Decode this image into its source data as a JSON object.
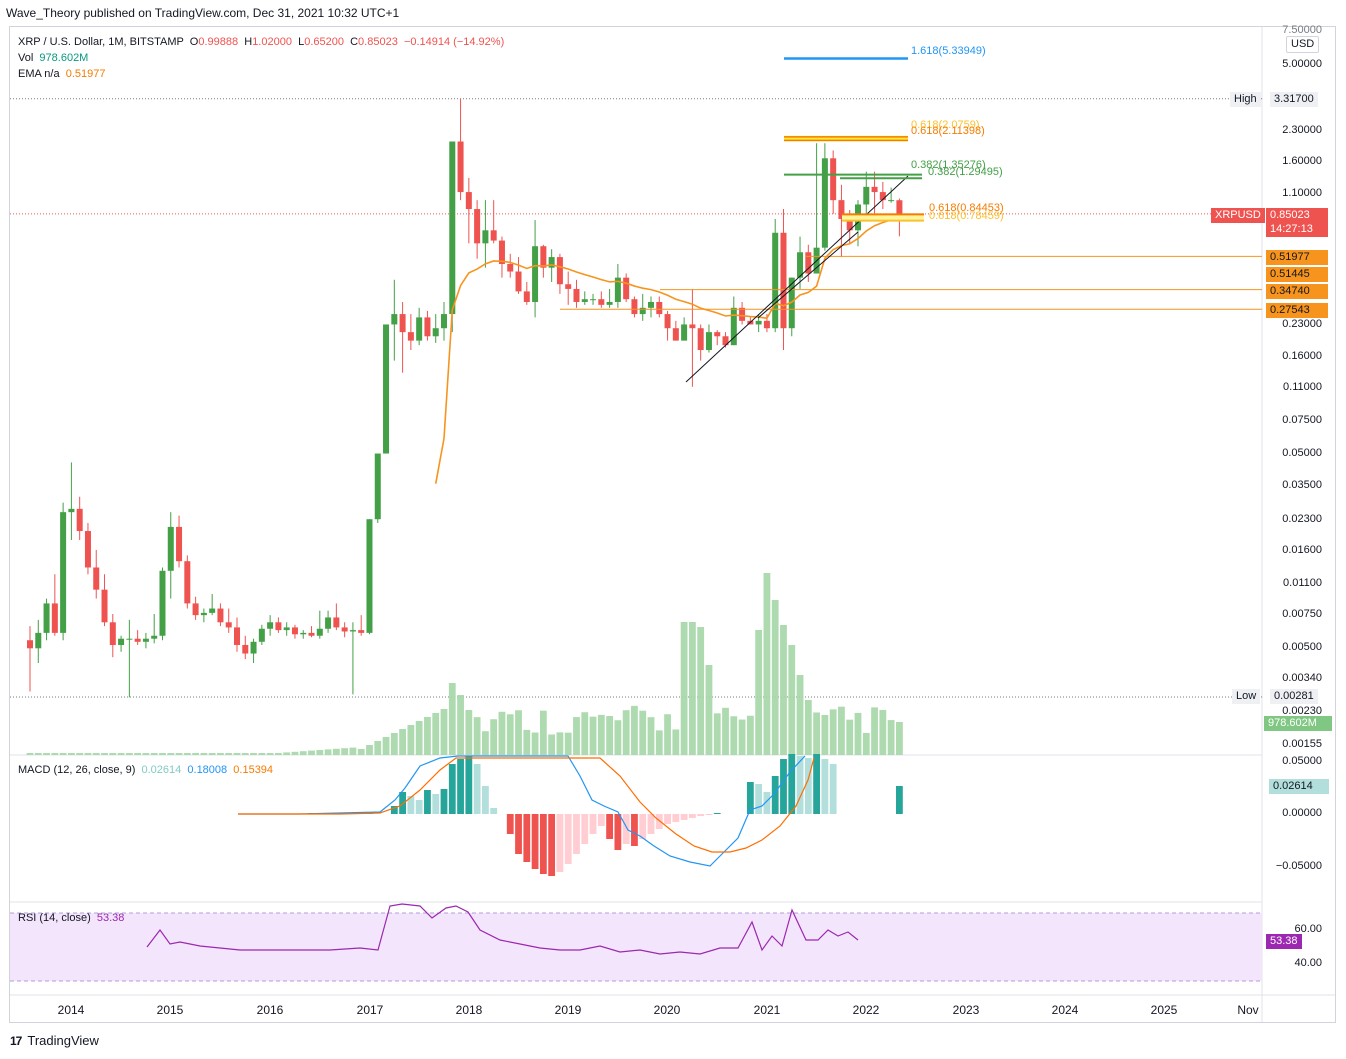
{
  "header": {
    "publisher": "Wave_Theory published on TradingView.com, Dec 31, 2021 10:32 UTC+1"
  },
  "legend": {
    "symbol": "XRP / U.S. Dollar, 1M, BITSTAMP",
    "open_label": "O",
    "open": "0.99888",
    "high_label": "H",
    "high": "1.02000",
    "low_label": "L",
    "low": "0.65200",
    "close_label": "C",
    "close": "0.85023",
    "change": "−0.14914 (−14.92%)",
    "vol_label": "Vol",
    "vol": "978.602M",
    "ema_label": "EMA n/a",
    "ema": "0.51977"
  },
  "macd_legend": {
    "label": "MACD (12, 26, close, 9)",
    "hist": "0.02614",
    "macd": "0.18008",
    "signal": "0.15394"
  },
  "rsi_legend": {
    "label": "RSI (14, close)",
    "value": "53.38"
  },
  "price_axis": {
    "currency": "USD",
    "top_partial": "7.50000",
    "ticks": [
      "5.00000",
      "3.31700",
      "2.30000",
      "1.60000",
      "1.10000",
      "0.85023",
      "0.51977",
      "0.51445",
      "0.34740",
      "0.27543",
      "0.23000",
      "0.16000",
      "0.11000",
      "0.07500",
      "0.05000",
      "0.03500",
      "0.02300",
      "0.01600",
      "0.01100",
      "0.00750",
      "0.00500",
      "0.00340",
      "0.00281",
      "0.00230",
      "0.00155"
    ],
    "high_label": "High",
    "high_value": "3.31700",
    "low_label": "Low",
    "low_value": "0.00281",
    "symbol_tag": "XRPUSD",
    "price_tag": "0.85023",
    "countdown": "14:27:13",
    "ema_tag": "0.51977",
    "level_tags": [
      "0.51445",
      "0.34740",
      "0.27543"
    ],
    "volume_tag": "978.602M"
  },
  "macd_axis": {
    "ticks": [
      "0.05000",
      "0.00000",
      "−0.05000"
    ],
    "tag": "0.02614"
  },
  "rsi_axis": {
    "ticks": [
      "60.00",
      "40.00"
    ],
    "tag": "53.38"
  },
  "fib_labels": {
    "ext_1618": "1.618(5.33949)",
    "fib_0618_a": "0.618(2.11398)",
    "fib_0618_b": "0.618(2.0759)",
    "fib_0382_a": "0.382(1.35276)",
    "fib_0382_b": "0.382(1.29495)",
    "fib_0618_c": "0.618(0.84453)",
    "fib_0618_d": "0.618(0.78459)"
  },
  "x_axis": [
    "2014",
    "2015",
    "2016",
    "2017",
    "2018",
    "2019",
    "2020",
    "2021",
    "2022",
    "2023",
    "2024",
    "2025",
    "Nov"
  ],
  "footer": {
    "brand": "TradingView"
  },
  "colors": {
    "up": "#43a047",
    "down": "#ef5350",
    "ema": "#f7941d",
    "volume": "#a5d6a7",
    "macd": "#2196f3",
    "signal": "#ff6d00",
    "rsi": "#9c27b0",
    "rsi_band": "#f3e5fc"
  },
  "chart_data": {
    "type": "candlestick",
    "scale": "log",
    "interval": "1M",
    "price_range": [
      0.00155,
      7.5
    ],
    "candles_ohlc": [
      [
        0.0055,
        0.0065,
        0.003,
        0.005
      ],
      [
        0.005,
        0.007,
        0.0042,
        0.006
      ],
      [
        0.006,
        0.009,
        0.0055,
        0.0085
      ],
      [
        0.0085,
        0.012,
        0.0058,
        0.006
      ],
      [
        0.006,
        0.028,
        0.0055,
        0.025
      ],
      [
        0.025,
        0.045,
        0.018,
        0.026
      ],
      [
        0.026,
        0.03,
        0.018,
        0.02
      ],
      [
        0.02,
        0.022,
        0.012,
        0.013
      ],
      [
        0.013,
        0.016,
        0.009,
        0.01
      ],
      [
        0.01,
        0.012,
        0.0065,
        0.0068
      ],
      [
        0.0068,
        0.0075,
        0.0045,
        0.0052
      ],
      [
        0.0052,
        0.0058,
        0.0048,
        0.0056
      ],
      [
        0.0056,
        0.007,
        0.0028,
        0.0056
      ],
      [
        0.0056,
        0.0062,
        0.0052,
        0.0054
      ],
      [
        0.0054,
        0.006,
        0.005,
        0.0056
      ],
      [
        0.0056,
        0.0075,
        0.0053,
        0.0058
      ],
      [
        0.0058,
        0.013,
        0.0055,
        0.0125
      ],
      [
        0.0125,
        0.025,
        0.009,
        0.021
      ],
      [
        0.021,
        0.024,
        0.013,
        0.014
      ],
      [
        0.014,
        0.015,
        0.008,
        0.0085
      ],
      [
        0.0085,
        0.0092,
        0.007,
        0.0074
      ],
      [
        0.0074,
        0.008,
        0.0068,
        0.0076
      ],
      [
        0.0076,
        0.0095,
        0.0074,
        0.008
      ],
      [
        0.008,
        0.0085,
        0.0065,
        0.0068
      ],
      [
        0.0068,
        0.008,
        0.006,
        0.0064
      ],
      [
        0.0064,
        0.0072,
        0.0048,
        0.0052
      ],
      [
        0.0052,
        0.0058,
        0.0044,
        0.0047
      ],
      [
        0.0047,
        0.0056,
        0.0042,
        0.0054
      ],
      [
        0.0054,
        0.0066,
        0.0052,
        0.0063
      ],
      [
        0.0063,
        0.0074,
        0.0058,
        0.0068
      ],
      [
        0.0068,
        0.0072,
        0.006,
        0.0062
      ],
      [
        0.0062,
        0.0068,
        0.0058,
        0.0064
      ],
      [
        0.0064,
        0.0066,
        0.0056,
        0.0059
      ],
      [
        0.0059,
        0.0062,
        0.0056,
        0.006
      ],
      [
        0.006,
        0.0065,
        0.0057,
        0.0058
      ],
      [
        0.0058,
        0.0078,
        0.0056,
        0.0063
      ],
      [
        0.0063,
        0.0078,
        0.006,
        0.0072
      ],
      [
        0.0072,
        0.0085,
        0.0062,
        0.0064
      ],
      [
        0.0064,
        0.0068,
        0.0057,
        0.0061
      ],
      [
        0.0061,
        0.0068,
        0.0029,
        0.0062
      ],
      [
        0.0062,
        0.0074,
        0.0058,
        0.006
      ],
      [
        0.006,
        0.023,
        0.0059,
        0.023
      ],
      [
        0.023,
        0.05,
        0.022,
        0.05
      ],
      [
        0.05,
        0.23,
        0.05,
        0.23
      ],
      [
        0.23,
        0.39,
        0.15,
        0.26
      ],
      [
        0.26,
        0.3,
        0.13,
        0.21
      ],
      [
        0.21,
        0.26,
        0.17,
        0.19
      ],
      [
        0.19,
        0.28,
        0.18,
        0.25
      ],
      [
        0.25,
        0.27,
        0.19,
        0.2
      ],
      [
        0.2,
        0.26,
        0.185,
        0.22
      ],
      [
        0.22,
        0.3,
        0.19,
        0.26
      ],
      [
        0.26,
        2.0,
        0.21,
        2.0
      ],
      [
        2.0,
        3.317,
        1.0,
        1.1
      ],
      [
        1.1,
        1.3,
        0.6,
        0.9
      ],
      [
        0.9,
        1.0,
        0.5,
        0.6
      ],
      [
        0.6,
        1.0,
        0.45,
        0.7
      ],
      [
        0.7,
        1.0,
        0.6,
        0.62
      ],
      [
        0.62,
        0.65,
        0.4,
        0.47
      ],
      [
        0.47,
        0.53,
        0.4,
        0.43
      ],
      [
        0.43,
        0.51,
        0.33,
        0.34
      ],
      [
        0.34,
        0.38,
        0.29,
        0.3
      ],
      [
        0.3,
        0.79,
        0.25,
        0.58
      ],
      [
        0.58,
        0.59,
        0.4,
        0.45
      ],
      [
        0.45,
        0.56,
        0.38,
        0.51
      ],
      [
        0.51,
        0.53,
        0.33,
        0.37
      ],
      [
        0.37,
        0.43,
        0.29,
        0.35
      ],
      [
        0.35,
        0.39,
        0.28,
        0.3
      ],
      [
        0.3,
        0.34,
        0.29,
        0.31
      ],
      [
        0.31,
        0.33,
        0.29,
        0.31
      ],
      [
        0.31,
        0.34,
        0.28,
        0.29
      ],
      [
        0.29,
        0.35,
        0.28,
        0.3
      ],
      [
        0.3,
        0.47,
        0.28,
        0.4
      ],
      [
        0.4,
        0.42,
        0.3,
        0.31
      ],
      [
        0.31,
        0.32,
        0.25,
        0.26
      ],
      [
        0.26,
        0.33,
        0.24,
        0.28
      ],
      [
        0.28,
        0.32,
        0.25,
        0.3
      ],
      [
        0.3,
        0.32,
        0.25,
        0.26
      ],
      [
        0.26,
        0.27,
        0.19,
        0.22
      ],
      [
        0.22,
        0.24,
        0.19,
        0.19
      ],
      [
        0.19,
        0.25,
        0.19,
        0.23
      ],
      [
        0.23,
        0.35,
        0.11,
        0.22
      ],
      [
        0.22,
        0.23,
        0.15,
        0.17
      ],
      [
        0.17,
        0.23,
        0.165,
        0.21
      ],
      [
        0.21,
        0.215,
        0.18,
        0.2
      ],
      [
        0.2,
        0.21,
        0.175,
        0.18
      ],
      [
        0.18,
        0.32,
        0.18,
        0.28
      ],
      [
        0.28,
        0.3,
        0.23,
        0.24
      ],
      [
        0.24,
        0.25,
        0.23,
        0.23
      ],
      [
        0.23,
        0.26,
        0.21,
        0.24
      ],
      [
        0.24,
        0.26,
        0.21,
        0.22
      ],
      [
        0.22,
        0.8,
        0.21,
        0.68
      ],
      [
        0.68,
        0.9,
        0.17,
        0.22
      ],
      [
        0.22,
        0.4,
        0.2,
        0.4
      ],
      [
        0.4,
        0.65,
        0.35,
        0.54
      ],
      [
        0.54,
        0.59,
        0.38,
        0.42
      ],
      [
        0.42,
        1.96,
        0.42,
        0.57
      ],
      [
        0.57,
        1.96,
        0.55,
        1.64
      ],
      [
        1.64,
        1.8,
        0.85,
        1.0
      ],
      [
        1.0,
        1.2,
        0.51,
        0.8
      ],
      [
        0.8,
        0.89,
        0.6,
        0.7
      ],
      [
        0.7,
        1.0,
        0.58,
        0.95
      ],
      [
        0.95,
        1.4,
        0.8,
        1.17
      ],
      [
        1.17,
        1.4,
        0.85,
        1.1
      ],
      [
        1.1,
        1.24,
        0.9,
        1.0
      ],
      [
        1.0,
        1.16,
        0.97,
        1.0
      ],
      [
        0.9989,
        1.02,
        0.652,
        0.8502
      ]
    ],
    "ema": {
      "label": "EMA n/a",
      "last": 0.51977
    },
    "horizontal_levels": [
      0.51445,
      0.3474,
      0.27543
    ],
    "fibonacci": [
      {
        "label": "1.618",
        "value": 5.33949
      },
      {
        "label": "0.618",
        "value": 2.11398
      },
      {
        "label": "0.618",
        "value": 2.0759
      },
      {
        "label": "0.382",
        "value": 1.35276
      },
      {
        "label": "0.382",
        "value": 1.29495
      },
      {
        "label": "0.618",
        "value": 0.84453
      },
      {
        "label": "0.618",
        "value": 0.78459
      }
    ],
    "volume_last": "978.602M",
    "macd": {
      "params": "12, 26, close, 9",
      "hist": 0.02614,
      "macd": 0.18008,
      "signal": 0.15394
    },
    "rsi": {
      "params": "14, close",
      "value": 53.38,
      "band": [
        40,
        60
      ]
    },
    "xlabels": [
      "2014",
      "2015",
      "2016",
      "2017",
      "2018",
      "2019",
      "2020",
      "2021",
      "2022",
      "2023",
      "2024",
      "2025",
      "Nov"
    ]
  }
}
